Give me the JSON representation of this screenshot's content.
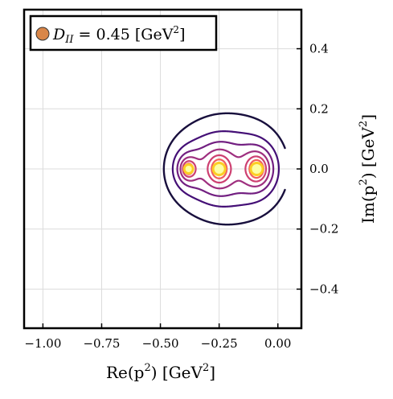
{
  "chart_data": {
    "type": "contour",
    "legend": {
      "label": "D_II = 0.45 [GeV²]",
      "symbol": "D",
      "subscript": "II",
      "rest": " = 0.45 [GeV",
      "sup": "2",
      "close": "]",
      "marker_color": "#d98648",
      "placement": "top-left"
    },
    "xlabel": {
      "main": "Re(p",
      "sup1": "2",
      "mid": ") [GeV",
      "sup2": "2",
      "end": "]"
    },
    "ylabel": {
      "main": "Im(p",
      "sup1": "2",
      "mid": ") [GeV",
      "sup2": "2",
      "end": "]"
    },
    "xlim": [
      -1.08,
      0.1
    ],
    "ylim": [
      -0.53,
      0.53
    ],
    "x_ticks": [
      -1.0,
      -0.75,
      -0.5,
      -0.25,
      0.0
    ],
    "x_tick_labels": [
      "−1.00",
      "−0.75",
      "−0.50",
      "−0.25",
      "0.00"
    ],
    "y_ticks": [
      -0.4,
      -0.2,
      0.0,
      0.2,
      0.4
    ],
    "y_tick_labels": [
      "−0.4",
      "−0.2",
      "0.0",
      "0.2",
      "0.4"
    ],
    "y_axis_side": "right",
    "grid": true,
    "colormap": "inferno",
    "poles": [
      {
        "re": -0.38,
        "im": 0.0
      },
      {
        "re": -0.25,
        "im": 0.0
      },
      {
        "re": -0.09,
        "im": 0.0
      }
    ],
    "contour_levels": 8
  }
}
